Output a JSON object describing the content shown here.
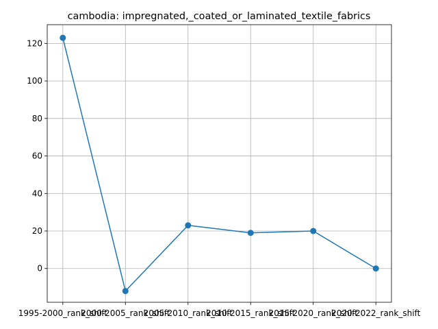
{
  "chart_data": {
    "type": "line",
    "title": "cambodia: impregnated,_coated_or_laminated_textile_fabrics",
    "xlabel": "",
    "ylabel": "",
    "categories": [
      "1995-2000_rank_shift",
      "2000-2005_rank_shift",
      "2005-2010_rank_shift",
      "2010-2015_rank_shift",
      "2015-2020_rank_shift",
      "2020-2022_rank_shift"
    ],
    "series": [
      {
        "values": [
          123,
          -12,
          23,
          19,
          20,
          0
        ],
        "color": "#1f77b4",
        "marker": "circle"
      }
    ],
    "ylim": [
      -18,
      130
    ],
    "yticks": [
      0,
      20,
      40,
      60,
      80,
      100,
      120
    ],
    "grid": true,
    "legend": "none"
  }
}
